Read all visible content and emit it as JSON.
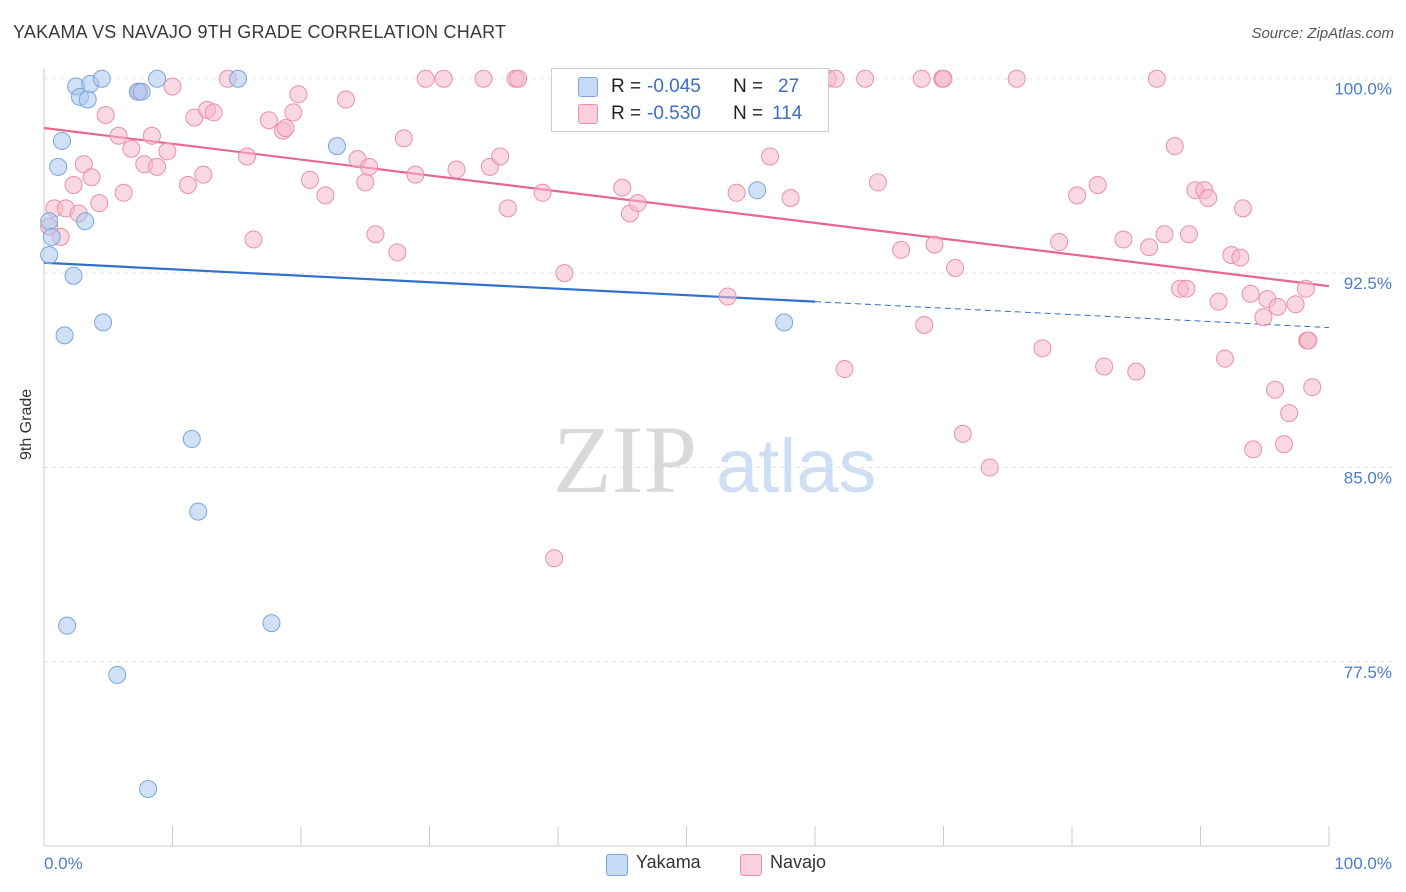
{
  "title": "YAKAMA VS NAVAJO 9TH GRADE CORRELATION CHART",
  "source": "Source: ZipAtlas.com",
  "watermark": {
    "zip": "ZIP",
    "atlas": "atlas"
  },
  "legend_top": {
    "rows": [
      {
        "r_label": "R =",
        "r_value": "-0.045",
        "n_label": "N =",
        "n_value": "27",
        "color": "#a9c8f0"
      },
      {
        "r_label": "R =",
        "r_value": "-0.530",
        "n_label": "N =",
        "n_value": "114",
        "color": "#f6b8c9"
      }
    ]
  },
  "legend_bottom": [
    {
      "label": "Yakama",
      "color": "#a9c8f0"
    },
    {
      "label": "Navajo",
      "color": "#f6b8c9"
    }
  ],
  "colors": {
    "yakama_fill": "#a9c8f0",
    "yakama_stroke": "#7aa6dc",
    "yakama_line": "#2f72cc",
    "navajo_fill": "#f6b8c9",
    "navajo_stroke": "#ea90ab",
    "navajo_line": "#e8678f",
    "grid": "#e4e4e4",
    "tick_text": "#4a7cc9"
  },
  "chart_data": {
    "type": "scatter",
    "title": "YAKAMA VS NAVAJO 9TH GRADE CORRELATION CHART",
    "xlabel": "",
    "ylabel": "9th Grade",
    "xlim": [
      0,
      100
    ],
    "ylim": [
      70.4,
      100.8
    ],
    "x_tick_labels": [
      "0.0%",
      "100.0%"
    ],
    "y_ticks": [
      100.0,
      92.5,
      85.0,
      77.5
    ],
    "y_tick_labels": [
      "100.0%",
      "92.5%",
      "85.0%",
      "77.5%"
    ],
    "grid": true,
    "legend_position": "top-center",
    "series": [
      {
        "name": "Yakama",
        "r": -0.045,
        "n": 27,
        "trend": {
          "x0": 0,
          "y0": 92.9,
          "x1": 60,
          "y1": 91.4,
          "dashed_to_x": 100,
          "dashed_to_y": 90.4
        },
        "points": [
          [
            0.4,
            94.5
          ],
          [
            0.4,
            93.2
          ],
          [
            0.6,
            93.9
          ],
          [
            1.1,
            96.6
          ],
          [
            1.4,
            97.6
          ],
          [
            1.6,
            90.1
          ],
          [
            1.8,
            78.9
          ],
          [
            2.3,
            92.4
          ],
          [
            2.5,
            99.7
          ],
          [
            2.8,
            99.3
          ],
          [
            3.2,
            94.5
          ],
          [
            3.4,
            99.2
          ],
          [
            3.6,
            99.8
          ],
          [
            4.5,
            100.0
          ],
          [
            4.6,
            90.6
          ],
          [
            5.7,
            77.0
          ],
          [
            7.3,
            99.5
          ],
          [
            7.6,
            99.5
          ],
          [
            8.1,
            72.6
          ],
          [
            8.8,
            100.0
          ],
          [
            11.5,
            86.1
          ],
          [
            12.0,
            83.3
          ],
          [
            15.1,
            100.0
          ],
          [
            17.7,
            79.0
          ],
          [
            22.8,
            97.4
          ],
          [
            55.5,
            95.7
          ],
          [
            57.6,
            90.6
          ]
        ]
      },
      {
        "name": "Navajo",
        "r": -0.53,
        "n": 114,
        "trend": {
          "x0": 0,
          "y0": 98.1,
          "x1": 100,
          "y1": 92.0
        },
        "points": [
          [
            0.4,
            94.3
          ],
          [
            0.8,
            95.0
          ],
          [
            1.3,
            93.9
          ],
          [
            1.7,
            95.0
          ],
          [
            2.3,
            95.9
          ],
          [
            2.7,
            94.8
          ],
          [
            3.1,
            96.7
          ],
          [
            3.7,
            96.2
          ],
          [
            4.3,
            95.2
          ],
          [
            4.8,
            98.6
          ],
          [
            5.8,
            97.8
          ],
          [
            6.2,
            95.6
          ],
          [
            6.8,
            97.3
          ],
          [
            7.4,
            99.5
          ],
          [
            7.8,
            96.7
          ],
          [
            8.4,
            97.8
          ],
          [
            8.8,
            96.6
          ],
          [
            9.6,
            97.2
          ],
          [
            10.0,
            99.7
          ],
          [
            11.2,
            95.9
          ],
          [
            11.7,
            98.5
          ],
          [
            12.4,
            96.3
          ],
          [
            12.7,
            98.8
          ],
          [
            13.2,
            98.7
          ],
          [
            14.3,
            100.0
          ],
          [
            15.8,
            97.0
          ],
          [
            16.3,
            93.8
          ],
          [
            17.5,
            98.4
          ],
          [
            18.6,
            98.0
          ],
          [
            18.8,
            98.1
          ],
          [
            19.4,
            98.7
          ],
          [
            19.8,
            99.4
          ],
          [
            20.7,
            96.1
          ],
          [
            21.9,
            95.5
          ],
          [
            23.5,
            99.2
          ],
          [
            24.4,
            96.9
          ],
          [
            25.0,
            96.0
          ],
          [
            25.3,
            96.6
          ],
          [
            25.8,
            94.0
          ],
          [
            27.5,
            93.3
          ],
          [
            28.0,
            97.7
          ],
          [
            28.9,
            96.3
          ],
          [
            29.7,
            100.0
          ],
          [
            31.1,
            100.0
          ],
          [
            32.1,
            96.5
          ],
          [
            34.2,
            100.0
          ],
          [
            34.7,
            96.6
          ],
          [
            35.5,
            97.0
          ],
          [
            36.1,
            95.0
          ],
          [
            36.7,
            100.0
          ],
          [
            36.9,
            100.0
          ],
          [
            38.8,
            95.6
          ],
          [
            39.7,
            81.5
          ],
          [
            40.5,
            92.5
          ],
          [
            42.0,
            100.0
          ],
          [
            45.0,
            95.8
          ],
          [
            45.6,
            94.8
          ],
          [
            46.2,
            95.2
          ],
          [
            52.7,
            100.0
          ],
          [
            53.2,
            91.6
          ],
          [
            53.9,
            95.6
          ],
          [
            56.5,
            97.0
          ],
          [
            58.1,
            95.4
          ],
          [
            60.4,
            100.0
          ],
          [
            61.0,
            100.0
          ],
          [
            61.6,
            100.0
          ],
          [
            62.3,
            88.8
          ],
          [
            63.9,
            100.0
          ],
          [
            64.9,
            96.0
          ],
          [
            66.7,
            93.4
          ],
          [
            68.3,
            100.0
          ],
          [
            68.5,
            90.5
          ],
          [
            69.3,
            93.6
          ],
          [
            69.9,
            100.0
          ],
          [
            70.0,
            100.0
          ],
          [
            70.9,
            92.7
          ],
          [
            71.5,
            86.3
          ],
          [
            73.6,
            85.0
          ],
          [
            75.7,
            100.0
          ],
          [
            77.7,
            89.6
          ],
          [
            79.0,
            93.7
          ],
          [
            80.4,
            95.5
          ],
          [
            82.0,
            95.9
          ],
          [
            82.5,
            88.9
          ],
          [
            84.0,
            93.8
          ],
          [
            85.0,
            88.7
          ],
          [
            86.0,
            93.5
          ],
          [
            86.6,
            100.0
          ],
          [
            87.2,
            94.0
          ],
          [
            88.0,
            97.4
          ],
          [
            88.4,
            91.9
          ],
          [
            88.9,
            91.9
          ],
          [
            89.1,
            94.0
          ],
          [
            89.6,
            95.7
          ],
          [
            90.3,
            95.7
          ],
          [
            90.6,
            95.4
          ],
          [
            91.4,
            91.4
          ],
          [
            91.9,
            89.2
          ],
          [
            92.4,
            93.2
          ],
          [
            93.1,
            93.1
          ],
          [
            93.3,
            95.0
          ],
          [
            93.9,
            91.7
          ],
          [
            94.1,
            85.7
          ],
          [
            94.9,
            90.8
          ],
          [
            95.2,
            91.5
          ],
          [
            95.8,
            88.0
          ],
          [
            96.0,
            91.2
          ],
          [
            96.5,
            85.9
          ],
          [
            96.9,
            87.1
          ],
          [
            97.4,
            91.3
          ],
          [
            98.3,
            89.9
          ],
          [
            98.7,
            88.1
          ],
          [
            98.2,
            91.9
          ],
          [
            98.4,
            89.9
          ]
        ]
      }
    ]
  }
}
